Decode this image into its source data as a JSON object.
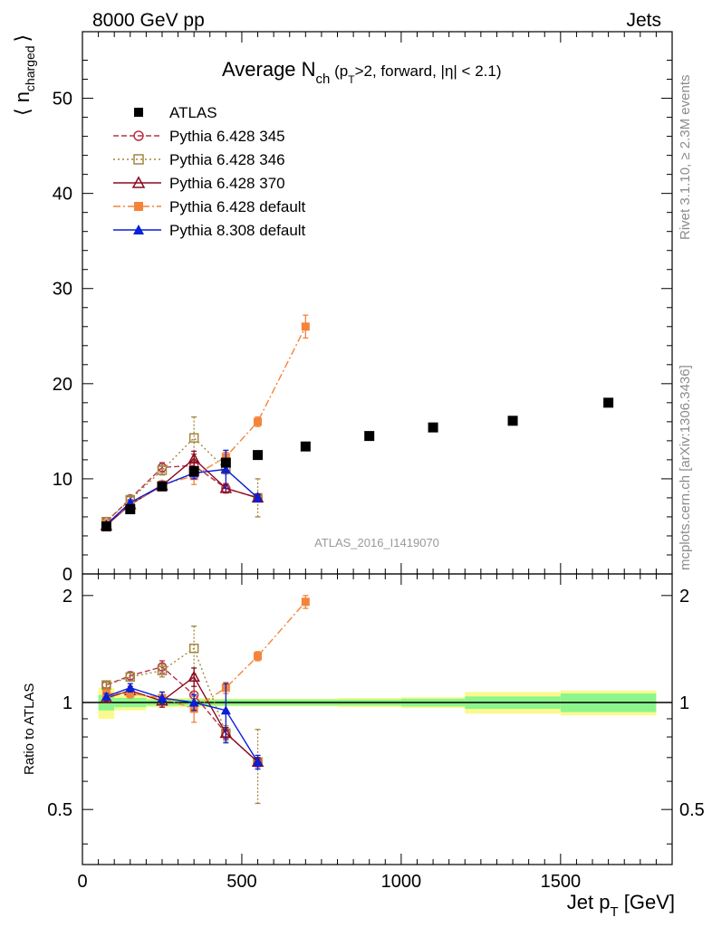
{
  "header": {
    "left": "8000 GeV pp",
    "right": "Jets"
  },
  "side": {
    "rivet": "Rivet 3.1.10, ≥ 2.3M events",
    "mcplots": "mcplots.cern.ch [arXiv:1306.3436]"
  },
  "analysis_id": "ATLAS_2016_I1419070",
  "chart_data": [
    {
      "type": "scatter",
      "title": "Average N_ch (p_T>2, forward, |η| < 2.1)",
      "title_parts": {
        "main": "Average N",
        "sub": "ch",
        "rest1": " (p",
        "sub2": "T",
        "rest2": ">2, forward, |η| < 2.1)"
      },
      "ylabel_parts": {
        "open": "⟨ n",
        "sub": "charged",
        "close": "⟩"
      },
      "xlim": [
        0,
        1850
      ],
      "ylim": [
        0,
        57
      ],
      "yticks": [
        0,
        10,
        20,
        30,
        40,
        50
      ],
      "legend_position": "top-left",
      "series": [
        {
          "name": "ATLAS",
          "color": "#000000",
          "marker": "square-filled",
          "line": "none",
          "x": [
            75,
            150,
            250,
            350,
            450,
            550,
            700,
            900,
            1100,
            1350,
            1650
          ],
          "y": [
            5.0,
            6.8,
            9.2,
            10.8,
            11.7,
            12.5,
            13.4,
            14.5,
            15.4,
            16.1,
            18.0
          ],
          "err": [
            0.3,
            0.3,
            0.3,
            0.3,
            0.3,
            0.3,
            0.3,
            0.3,
            0.3,
            0.3,
            0.3
          ]
        },
        {
          "name": "Pythia 6.428 345",
          "color": "#b5344a",
          "marker": "circle-open",
          "line": "dashed",
          "x": [
            75,
            150,
            250,
            350,
            450,
            550
          ],
          "y": [
            5.5,
            7.9,
            11.2,
            11.4,
            9.0,
            8.0
          ],
          "err": [
            0.2,
            0.3,
            0.5,
            1.2,
            0.5,
            0.3
          ]
        },
        {
          "name": "Pythia 6.428 346",
          "color": "#a2873f",
          "marker": "square-open",
          "line": "dotted",
          "x": [
            75,
            150,
            250,
            350,
            450,
            550
          ],
          "y": [
            5.5,
            7.8,
            10.9,
            14.3,
            11.0,
            8.0
          ],
          "err": [
            0.2,
            0.3,
            0.5,
            2.2,
            0.5,
            2.0
          ]
        },
        {
          "name": "Pythia 6.428 370",
          "color": "#8b0a1e",
          "marker": "triangle-open",
          "line": "solid",
          "x": [
            75,
            150,
            250,
            350,
            450,
            550
          ],
          "y": [
            5.1,
            7.3,
            9.3,
            12.1,
            9.0,
            8.0
          ],
          "err": [
            0.2,
            0.3,
            0.4,
            0.8,
            0.4,
            0.3
          ]
        },
        {
          "name": "Pythia 6.428 default",
          "color": "#f4843a",
          "marker": "square-filled",
          "line": "dashdot",
          "x": [
            75,
            150,
            250,
            350,
            450,
            550,
            700
          ],
          "y": [
            5.3,
            7.3,
            9.4,
            10.3,
            12.3,
            16.0,
            26.0
          ],
          "err": [
            0.2,
            0.3,
            0.4,
            0.9,
            0.5,
            0.5,
            1.2
          ]
        },
        {
          "name": "Pythia 8.308 default",
          "color": "#0a1fd6",
          "marker": "triangle-filled",
          "line": "solid",
          "x": [
            75,
            150,
            250,
            350,
            450,
            550
          ],
          "y": [
            5.2,
            7.5,
            9.3,
            10.6,
            11.0,
            8.0
          ],
          "err": [
            0.2,
            0.3,
            0.4,
            0.6,
            2.0,
            0.4
          ]
        }
      ]
    },
    {
      "type": "scatter",
      "ylabel": "Ratio to ATLAS",
      "xlabel_parts": {
        "main": "Jet p",
        "sub": "T",
        "rest": " [GeV]"
      },
      "xlim": [
        0,
        1850
      ],
      "ylim": [
        0.35,
        2.3
      ],
      "yticks": [
        0.5,
        1,
        2
      ],
      "xticks": [
        0,
        500,
        1000,
        1500
      ],
      "reference_line": 1,
      "bands": {
        "inner_color": "#8cf58c",
        "outer_color": "#fafa8c",
        "x_low": [
          50,
          100,
          200,
          300,
          400,
          500,
          600,
          800,
          1000,
          1200,
          1500
        ],
        "x_high": [
          100,
          200,
          300,
          400,
          500,
          600,
          800,
          1000,
          1200,
          1500,
          1800
        ],
        "inner": [
          0.05,
          0.03,
          0.02,
          0.02,
          0.02,
          0.02,
          0.02,
          0.02,
          0.025,
          0.04,
          0.06
        ],
        "outer": [
          0.1,
          0.05,
          0.03,
          0.03,
          0.025,
          0.025,
          0.025,
          0.03,
          0.035,
          0.07,
          0.08
        ]
      },
      "series": [
        {
          "name": "Pythia 6.428 345",
          "x": [
            75,
            150,
            250,
            350,
            450,
            550
          ],
          "y": [
            1.12,
            1.19,
            1.26,
            1.05,
            0.82,
            0.68
          ],
          "err": [
            0.02,
            0.03,
            0.05,
            0.1,
            0.03,
            0.02
          ]
        },
        {
          "name": "Pythia 6.428 346",
          "x": [
            75,
            150,
            250,
            350,
            450,
            550
          ],
          "y": [
            1.12,
            1.18,
            1.23,
            1.42,
            0.82,
            0.68
          ],
          "err": [
            0.02,
            0.03,
            0.05,
            0.22,
            0.04,
            0.16
          ]
        },
        {
          "name": "Pythia 6.428 370",
          "x": [
            75,
            150,
            250,
            350,
            450,
            550
          ],
          "y": [
            1.03,
            1.08,
            1.01,
            1.18,
            0.82,
            0.68
          ],
          "err": [
            0.02,
            0.03,
            0.04,
            0.07,
            0.03,
            0.02
          ]
        },
        {
          "name": "Pythia 6.428 default",
          "x": [
            75,
            150,
            250,
            350,
            450,
            550,
            700
          ],
          "y": [
            1.06,
            1.06,
            1.03,
            0.96,
            1.1,
            1.35,
            1.92
          ],
          "err": [
            0.02,
            0.03,
            0.04,
            0.08,
            0.04,
            0.04,
            0.08
          ]
        },
        {
          "name": "Pythia 8.308 default",
          "x": [
            75,
            150,
            250,
            350,
            450,
            550
          ],
          "y": [
            1.04,
            1.1,
            1.03,
            1.0,
            0.95,
            0.68
          ],
          "err": [
            0.02,
            0.03,
            0.04,
            0.05,
            0.18,
            0.03
          ]
        }
      ]
    }
  ]
}
